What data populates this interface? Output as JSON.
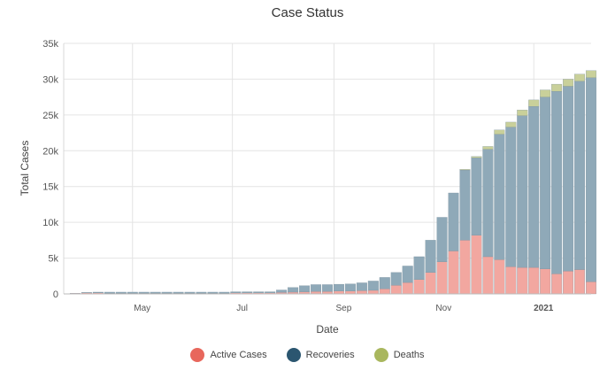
{
  "chart_data": {
    "type": "bar",
    "title": "Case Status",
    "xlabel": "Date",
    "ylabel": "Total Cases",
    "x_range": [
      "2020-03-20",
      "2021-02-05"
    ],
    "ylim": [
      0,
      35000
    ],
    "y_ticks": [
      {
        "value": 0,
        "label": "0"
      },
      {
        "value": 5000,
        "label": "5k"
      },
      {
        "value": 10000,
        "label": "10k"
      },
      {
        "value": 15000,
        "label": "15k"
      },
      {
        "value": 20000,
        "label": "20k"
      },
      {
        "value": 25000,
        "label": "25k"
      },
      {
        "value": 30000,
        "label": "30k"
      },
      {
        "value": 35000,
        "label": "35k"
      }
    ],
    "x_ticks": [
      {
        "date": "2020-05-01",
        "label": "May"
      },
      {
        "date": "2020-07-01",
        "label": "Jul"
      },
      {
        "date": "2020-09-01",
        "label": "Sep"
      },
      {
        "date": "2020-11-01",
        "label": "Nov"
      },
      {
        "date": "2021-01-01",
        "label": "2021",
        "bold": true
      }
    ],
    "grid": true,
    "stacked": true,
    "legend_position": "bottom",
    "series": [
      {
        "name": "Active Cases",
        "color": "#f2a7a0",
        "legend_color": "#e8675c"
      },
      {
        "name": "Recoveries",
        "color": "#8fa9b8",
        "legend_color": "#2b5670"
      },
      {
        "name": "Deaths",
        "color": "#c9d09a",
        "legend_color": "#a9b75e"
      }
    ],
    "dates": [
      "2020-03-27",
      "2020-04-03",
      "2020-04-10",
      "2020-04-17",
      "2020-04-24",
      "2020-05-01",
      "2020-05-08",
      "2020-05-15",
      "2020-05-22",
      "2020-05-29",
      "2020-06-05",
      "2020-06-12",
      "2020-06-19",
      "2020-06-26",
      "2020-07-03",
      "2020-07-10",
      "2020-07-17",
      "2020-07-24",
      "2020-07-31",
      "2020-08-07",
      "2020-08-14",
      "2020-08-21",
      "2020-08-28",
      "2020-09-04",
      "2020-09-11",
      "2020-09-18",
      "2020-09-25",
      "2020-10-02",
      "2020-10-09",
      "2020-10-16",
      "2020-10-23",
      "2020-10-30",
      "2020-11-06",
      "2020-11-13",
      "2020-11-20",
      "2020-11-27",
      "2020-12-04",
      "2020-12-11",
      "2020-12-18",
      "2020-12-25",
      "2021-01-01",
      "2021-01-08",
      "2021-01-15",
      "2021-01-22",
      "2021-01-29",
      "2021-02-05"
    ],
    "active": [
      100,
      150,
      150,
      100,
      100,
      100,
      100,
      100,
      100,
      100,
      100,
      100,
      100,
      100,
      150,
      150,
      150,
      150,
      200,
      250,
      300,
      350,
      350,
      400,
      400,
      450,
      500,
      700,
      1200,
      1600,
      2000,
      3000,
      4500,
      6000,
      7500,
      8200,
      5200,
      4800,
      3800,
      3700,
      3700,
      3500,
      2800,
      3200,
      3400,
      1700
    ],
    "recoveries": [
      0,
      50,
      100,
      150,
      150,
      150,
      150,
      150,
      150,
      150,
      150,
      150,
      150,
      150,
      150,
      150,
      150,
      150,
      350,
      650,
      850,
      950,
      950,
      950,
      1000,
      1100,
      1300,
      1600,
      1800,
      2300,
      3200,
      4500,
      6200,
      8100,
      9800,
      10800,
      15000,
      17500,
      19500,
      21200,
      22500,
      24000,
      25500,
      25800,
      26300,
      28500
    ],
    "deaths": [
      0,
      0,
      0,
      0,
      0,
      0,
      0,
      0,
      0,
      0,
      0,
      0,
      0,
      0,
      0,
      0,
      0,
      0,
      0,
      0,
      0,
      0,
      0,
      0,
      0,
      0,
      0,
      0,
      0,
      0,
      0,
      0,
      0,
      0,
      100,
      200,
      400,
      600,
      700,
      800,
      900,
      1000,
      1000,
      1000,
      1000,
      1000
    ]
  }
}
